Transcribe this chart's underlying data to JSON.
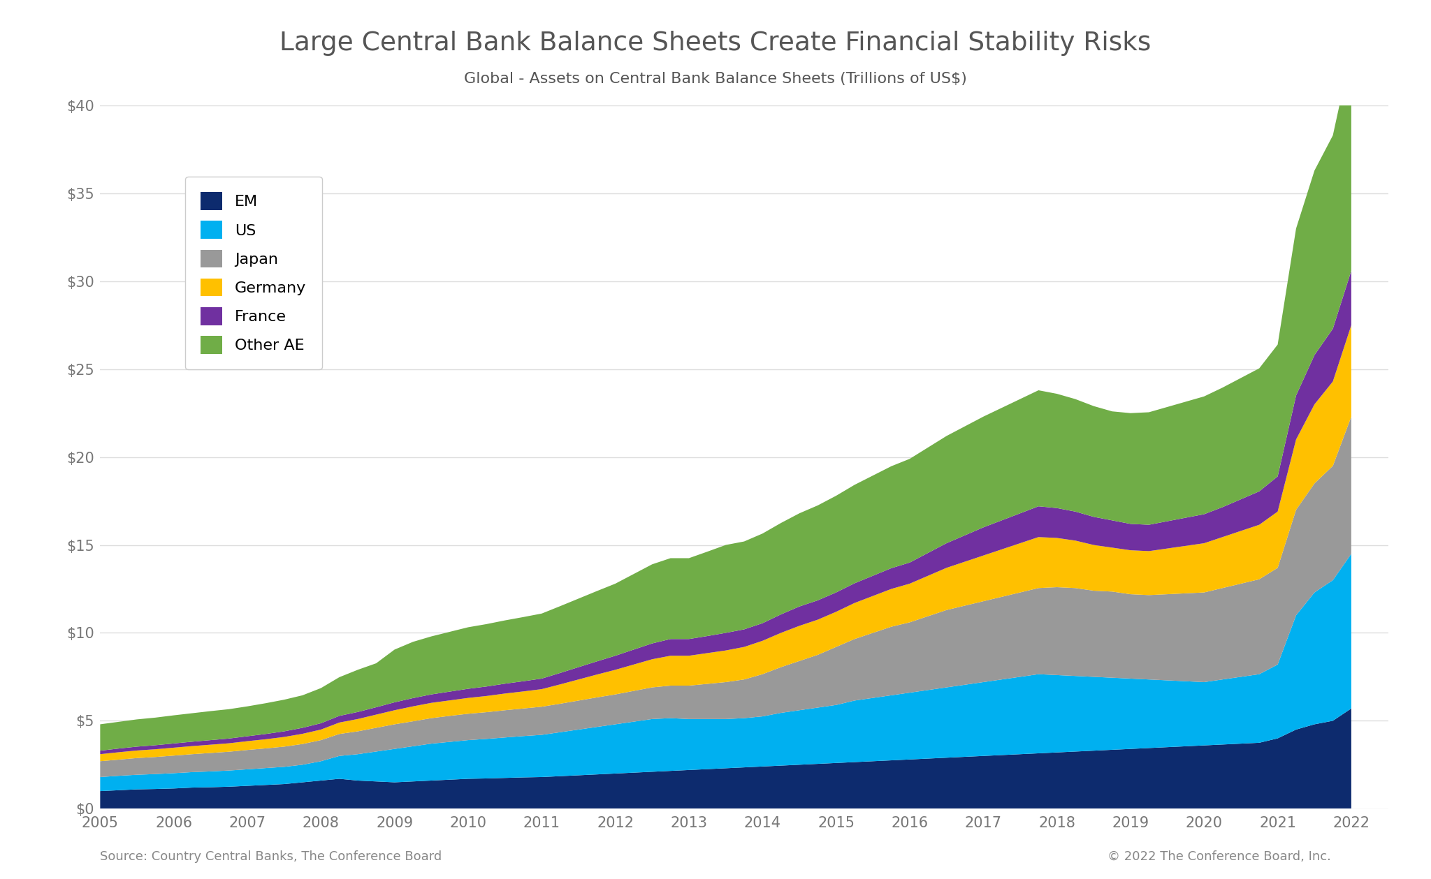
{
  "title": "Large Central Bank Balance Sheets Create Financial Stability Risks",
  "subtitle": "Global - Assets on Central Bank Balance Sheets (Trillions of US$)",
  "source_left": "Source: Country Central Banks, The Conference Board",
  "source_right": "© 2022 The Conference Board, Inc.",
  "background_color": "#ffffff",
  "title_color": "#555555",
  "subtitle_color": "#555555",
  "tick_color": "#777777",
  "grid_color": "#dddddd",
  "legend_labels": [
    "EM",
    "US",
    "Japan",
    "Germany",
    "France",
    "Other AE"
  ],
  "colors": [
    "#0d2b6e",
    "#00b0f0",
    "#999999",
    "#ffc000",
    "#7030a0",
    "#70ad47"
  ],
  "years": [
    2005,
    2005.25,
    2005.5,
    2005.75,
    2006,
    2006.25,
    2006.5,
    2006.75,
    2007,
    2007.25,
    2007.5,
    2007.75,
    2008,
    2008.25,
    2008.5,
    2008.75,
    2009,
    2009.25,
    2009.5,
    2009.75,
    2010,
    2010.25,
    2010.5,
    2010.75,
    2011,
    2011.25,
    2011.5,
    2011.75,
    2012,
    2012.25,
    2012.5,
    2012.75,
    2013,
    2013.25,
    2013.5,
    2013.75,
    2014,
    2014.25,
    2014.5,
    2014.75,
    2015,
    2015.25,
    2015.5,
    2015.75,
    2016,
    2016.25,
    2016.5,
    2016.75,
    2017,
    2017.25,
    2017.5,
    2017.75,
    2018,
    2018.25,
    2018.5,
    2018.75,
    2019,
    2019.25,
    2019.5,
    2019.75,
    2020,
    2020.25,
    2020.5,
    2020.75,
    2021,
    2021.25,
    2021.5,
    2021.75,
    2022
  ],
  "EM": [
    1.0,
    1.05,
    1.1,
    1.12,
    1.15,
    1.2,
    1.22,
    1.25,
    1.3,
    1.35,
    1.4,
    1.5,
    1.6,
    1.7,
    1.6,
    1.55,
    1.5,
    1.55,
    1.6,
    1.65,
    1.7,
    1.72,
    1.75,
    1.78,
    1.8,
    1.85,
    1.9,
    1.95,
    2.0,
    2.05,
    2.1,
    2.15,
    2.2,
    2.25,
    2.3,
    2.35,
    2.4,
    2.45,
    2.5,
    2.55,
    2.6,
    2.65,
    2.7,
    2.75,
    2.8,
    2.85,
    2.9,
    2.95,
    3.0,
    3.05,
    3.1,
    3.15,
    3.2,
    3.25,
    3.3,
    3.35,
    3.4,
    3.45,
    3.5,
    3.55,
    3.6,
    3.65,
    3.7,
    3.75,
    4.0,
    4.5,
    4.8,
    5.0,
    5.7
  ],
  "US": [
    0.8,
    0.82,
    0.83,
    0.85,
    0.87,
    0.88,
    0.9,
    0.92,
    0.94,
    0.96,
    0.98,
    1.0,
    1.1,
    1.3,
    1.5,
    1.7,
    1.9,
    2.0,
    2.1,
    2.15,
    2.2,
    2.25,
    2.3,
    2.35,
    2.4,
    2.5,
    2.6,
    2.7,
    2.8,
    2.9,
    3.0,
    3.0,
    2.9,
    2.85,
    2.8,
    2.8,
    2.85,
    3.0,
    3.1,
    3.2,
    3.3,
    3.5,
    3.6,
    3.7,
    3.8,
    3.9,
    4.0,
    4.1,
    4.2,
    4.3,
    4.4,
    4.5,
    4.4,
    4.3,
    4.2,
    4.1,
    4.0,
    3.9,
    3.8,
    3.7,
    3.6,
    3.7,
    3.8,
    3.9,
    4.2,
    6.5,
    7.5,
    8.0,
    8.8
  ],
  "Japan": [
    0.9,
    0.92,
    0.95,
    0.97,
    1.0,
    1.02,
    1.05,
    1.07,
    1.1,
    1.12,
    1.15,
    1.18,
    1.2,
    1.25,
    1.3,
    1.35,
    1.4,
    1.42,
    1.45,
    1.48,
    1.5,
    1.52,
    1.55,
    1.57,
    1.6,
    1.62,
    1.65,
    1.68,
    1.7,
    1.75,
    1.8,
    1.85,
    1.9,
    2.0,
    2.1,
    2.2,
    2.4,
    2.6,
    2.8,
    3.0,
    3.3,
    3.5,
    3.7,
    3.9,
    4.0,
    4.2,
    4.4,
    4.5,
    4.6,
    4.7,
    4.8,
    4.9,
    5.0,
    5.0,
    4.9,
    4.9,
    4.8,
    4.8,
    4.9,
    5.0,
    5.1,
    5.2,
    5.3,
    5.4,
    5.5,
    6.0,
    6.2,
    6.5,
    7.8
  ],
  "Germany": [
    0.4,
    0.42,
    0.43,
    0.44,
    0.45,
    0.46,
    0.47,
    0.48,
    0.5,
    0.52,
    0.55,
    0.58,
    0.6,
    0.65,
    0.7,
    0.75,
    0.8,
    0.85,
    0.87,
    0.88,
    0.9,
    0.92,
    0.95,
    0.97,
    1.0,
    1.1,
    1.2,
    1.3,
    1.4,
    1.5,
    1.6,
    1.7,
    1.7,
    1.75,
    1.8,
    1.85,
    1.9,
    1.95,
    2.0,
    2.0,
    2.0,
    2.05,
    2.1,
    2.15,
    2.2,
    2.3,
    2.4,
    2.5,
    2.6,
    2.7,
    2.8,
    2.9,
    2.8,
    2.7,
    2.6,
    2.5,
    2.5,
    2.5,
    2.6,
    2.7,
    2.8,
    2.9,
    3.0,
    3.1,
    3.2,
    4.0,
    4.5,
    4.8,
    5.2
  ],
  "France": [
    0.2,
    0.21,
    0.22,
    0.23,
    0.24,
    0.25,
    0.26,
    0.27,
    0.28,
    0.3,
    0.32,
    0.34,
    0.36,
    0.38,
    0.4,
    0.42,
    0.45,
    0.47,
    0.48,
    0.5,
    0.52,
    0.54,
    0.56,
    0.58,
    0.6,
    0.65,
    0.7,
    0.75,
    0.8,
    0.85,
    0.9,
    0.95,
    0.95,
    0.97,
    1.0,
    1.0,
    1.0,
    1.05,
    1.1,
    1.1,
    1.1,
    1.12,
    1.15,
    1.18,
    1.2,
    1.3,
    1.4,
    1.5,
    1.6,
    1.65,
    1.7,
    1.75,
    1.7,
    1.65,
    1.6,
    1.55,
    1.5,
    1.5,
    1.55,
    1.6,
    1.65,
    1.7,
    1.8,
    1.9,
    2.0,
    2.5,
    2.8,
    3.0,
    3.1
  ],
  "Other_AE": [
    1.5,
    1.52,
    1.55,
    1.57,
    1.6,
    1.62,
    1.65,
    1.67,
    1.7,
    1.75,
    1.8,
    1.85,
    2.0,
    2.2,
    2.4,
    2.5,
    3.0,
    3.2,
    3.3,
    3.4,
    3.5,
    3.55,
    3.6,
    3.65,
    3.7,
    3.8,
    3.9,
    4.0,
    4.1,
    4.3,
    4.5,
    4.6,
    4.6,
    4.8,
    5.0,
    5.0,
    5.1,
    5.2,
    5.3,
    5.4,
    5.5,
    5.6,
    5.7,
    5.8,
    5.9,
    6.0,
    6.1,
    6.2,
    6.3,
    6.4,
    6.5,
    6.6,
    6.5,
    6.4,
    6.3,
    6.2,
    6.3,
    6.4,
    6.5,
    6.6,
    6.7,
    6.8,
    6.9,
    7.0,
    7.5,
    9.5,
    10.5,
    11.0,
    12.5
  ],
  "ylim": [
    0,
    40
  ],
  "yticks": [
    0,
    5,
    10,
    15,
    20,
    25,
    30,
    35,
    40
  ],
  "xticks": [
    2005,
    2006,
    2007,
    2008,
    2009,
    2010,
    2011,
    2012,
    2013,
    2014,
    2015,
    2016,
    2017,
    2018,
    2019,
    2020,
    2021,
    2022
  ]
}
